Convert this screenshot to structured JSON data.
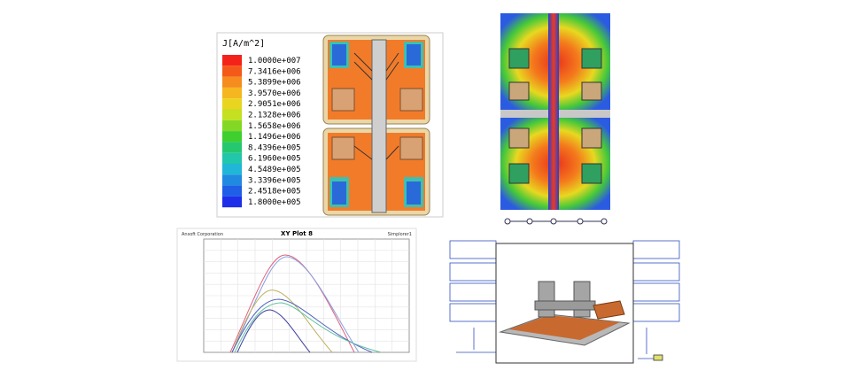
{
  "legend": {
    "title": "J[A/m^2]",
    "levels": [
      "1.0000e+007",
      "7.3416e+006",
      "5.3899e+006",
      "3.9570e+006",
      "2.9051e+006",
      "2.1328e+006",
      "1.5658e+006",
      "1.1496e+006",
      "8.4396e+005",
      "6.1960e+005",
      "4.5489e+005",
      "3.3396e+005",
      "2.4518e+005",
      "1.8000e+005"
    ]
  },
  "plot": {
    "title": "XY Plot 8",
    "company": "Ansoft Corporation",
    "design": "Simplorer1"
  }
}
